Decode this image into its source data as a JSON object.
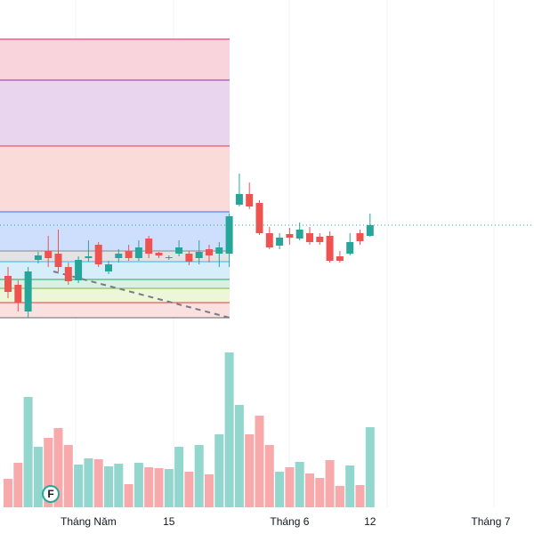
{
  "chart_data": {
    "type": "candlestick",
    "categories": [
      null,
      null,
      null,
      null,
      null,
      null,
      null,
      null,
      "Tháng Năm",
      null,
      null,
      null,
      null,
      null,
      null,
      null,
      "15",
      null,
      null,
      null,
      null,
      null,
      null,
      null,
      null,
      null,
      null,
      null,
      "Tháng 6",
      null,
      null,
      null,
      null,
      null,
      null,
      null,
      "12",
      null,
      null,
      null,
      null,
      null,
      null,
      null,
      null,
      null,
      null,
      null,
      "Tháng 7",
      null
    ],
    "open": [
      290,
      280,
      250,
      308,
      318,
      315,
      300,
      285,
      310,
      325,
      295,
      310,
      318,
      310,
      332,
      316,
      310,
      315,
      315,
      310,
      320,
      315,
      315,
      370,
      382,
      372,
      338,
      324,
      337,
      332,
      338,
      334,
      335,
      312,
      315,
      338,
      335,
      null,
      null,
      null,
      null,
      null,
      null,
      null,
      null,
      null,
      null,
      null,
      null,
      null
    ],
    "close": [
      272,
      260,
      295,
      313,
      310,
      300,
      284,
      308,
      312,
      303,
      303,
      315,
      310,
      322,
      315,
      313,
      311,
      322,
      306,
      317,
      313,
      322,
      357,
      382,
      368,
      338,
      322,
      333,
      333,
      342,
      328,
      328,
      307,
      307,
      328,
      329,
      347,
      null,
      null,
      null,
      null,
      null,
      null,
      null,
      null,
      null,
      null,
      null,
      null,
      null
    ],
    "high": [
      300,
      285,
      300,
      317,
      335,
      342,
      305,
      312,
      330,
      328,
      307,
      320,
      325,
      330,
      335,
      317,
      313,
      330,
      318,
      330,
      325,
      328,
      360,
      405,
      395,
      375,
      345,
      338,
      344,
      350,
      345,
      338,
      340,
      318,
      338,
      342,
      360,
      null,
      null,
      null,
      null,
      null,
      null,
      null,
      null,
      null,
      null,
      null,
      null,
      null
    ],
    "low": [
      265,
      250,
      243,
      304,
      300,
      295,
      280,
      282,
      306,
      300,
      292,
      305,
      307,
      307,
      310,
      310,
      308,
      312,
      302,
      303,
      305,
      300,
      300,
      368,
      365,
      336,
      320,
      320,
      325,
      330,
      325,
      325,
      305,
      305,
      313,
      325,
      334,
      null,
      null,
      null,
      null,
      null,
      null,
      null,
      null,
      null,
      null,
      null,
      null,
      null
    ],
    "volume": [
      32,
      50,
      124,
      68,
      78,
      89,
      70,
      48,
      55,
      54,
      46,
      49,
      26,
      50,
      45,
      44,
      43,
      68,
      40,
      70,
      37,
      82,
      174,
      115,
      82,
      103,
      70,
      40,
      45,
      51,
      38,
      33,
      53,
      24,
      47,
      25,
      90,
      null,
      null,
      null,
      null,
      null,
      null,
      null,
      null,
      null,
      null,
      null,
      null,
      null
    ],
    "ylim": [
      240,
      580
    ],
    "volume_ylim": [
      0,
      200
    ],
    "up_color": "#26a69a",
    "down_color": "#ef5350",
    "up_volume_color": "#92d6cd",
    "down_volume_color": "#f7a9ab",
    "annotation": "F"
  }
}
